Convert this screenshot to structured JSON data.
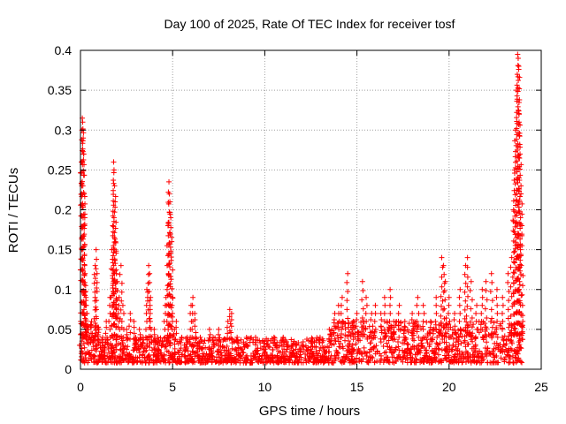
{
  "chart_data": {
    "type": "scatter",
    "title": "Day 100 of 2025, Rate Of TEC Index for receiver tosf",
    "xlabel": "GPS time / hours",
    "ylabel": "ROTI / TECUs",
    "xlim": [
      0,
      25
    ],
    "ylim": [
      0,
      0.4
    ],
    "xticks": [
      0,
      5,
      10,
      15,
      20,
      25
    ],
    "xtick_labels": [
      "0",
      "5",
      "10",
      "15",
      "20",
      "25"
    ],
    "yticks": [
      0,
      0.05,
      0.1,
      0.15,
      0.2,
      0.25,
      0.3,
      0.35,
      0.4
    ],
    "ytick_labels": [
      "0",
      "0.05",
      "0.1",
      "0.15",
      "0.2",
      "0.25",
      "0.3",
      "0.35",
      "0.4"
    ],
    "grid": true,
    "marker": "+",
    "color": "#ff0000",
    "series": [
      {
        "name": "ROTI",
        "points": [
          [
            0.0,
            0.03
          ],
          [
            0.05,
            0.26
          ],
          [
            0.08,
            0.3
          ],
          [
            0.1,
            0.315
          ],
          [
            0.12,
            0.31
          ],
          [
            0.15,
            0.29
          ],
          [
            0.18,
            0.27
          ],
          [
            0.2,
            0.22
          ],
          [
            0.22,
            0.18
          ],
          [
            0.25,
            0.12
          ],
          [
            0.3,
            0.09
          ],
          [
            0.35,
            0.07
          ],
          [
            0.4,
            0.05
          ],
          [
            0.5,
            0.04
          ],
          [
            0.6,
            0.06
          ],
          [
            0.7,
            0.04
          ],
          [
            0.8,
            0.13
          ],
          [
            0.85,
            0.15
          ],
          [
            0.9,
            0.12
          ],
          [
            1.0,
            0.05
          ],
          [
            1.2,
            0.04
          ],
          [
            1.4,
            0.06
          ],
          [
            1.6,
            0.09
          ],
          [
            1.7,
            0.15
          ],
          [
            1.75,
            0.18
          ],
          [
            1.8,
            0.26
          ],
          [
            1.82,
            0.25
          ],
          [
            1.85,
            0.23
          ],
          [
            1.88,
            0.21
          ],
          [
            1.9,
            0.16
          ],
          [
            1.95,
            0.12
          ],
          [
            2.0,
            0.11
          ],
          [
            2.1,
            0.09
          ],
          [
            2.2,
            0.13
          ],
          [
            2.3,
            0.08
          ],
          [
            2.5,
            0.05
          ],
          [
            2.7,
            0.07
          ],
          [
            2.9,
            0.06
          ],
          [
            3.0,
            0.04
          ],
          [
            3.2,
            0.05
          ],
          [
            3.4,
            0.04
          ],
          [
            3.6,
            0.1
          ],
          [
            3.7,
            0.13
          ],
          [
            3.75,
            0.12
          ],
          [
            3.8,
            0.09
          ],
          [
            4.0,
            0.05
          ],
          [
            4.2,
            0.04
          ],
          [
            4.4,
            0.03
          ],
          [
            4.6,
            0.08
          ],
          [
            4.7,
            0.1
          ],
          [
            4.75,
            0.18
          ],
          [
            4.8,
            0.235
          ],
          [
            4.82,
            0.22
          ],
          [
            4.85,
            0.21
          ],
          [
            4.9,
            0.19
          ],
          [
            4.95,
            0.16
          ],
          [
            5.0,
            0.09
          ],
          [
            5.1,
            0.05
          ],
          [
            5.2,
            0.06
          ],
          [
            5.5,
            0.04
          ],
          [
            5.8,
            0.04
          ],
          [
            6.0,
            0.08
          ],
          [
            6.1,
            0.09
          ],
          [
            6.2,
            0.07
          ],
          [
            6.5,
            0.04
          ],
          [
            7.0,
            0.05
          ],
          [
            7.2,
            0.04
          ],
          [
            7.5,
            0.05
          ],
          [
            8.0,
            0.06
          ],
          [
            8.1,
            0.075
          ],
          [
            8.2,
            0.07
          ],
          [
            8.5,
            0.04
          ],
          [
            9.0,
            0.03
          ],
          [
            9.5,
            0.04
          ],
          [
            10.0,
            0.035
          ],
          [
            10.5,
            0.04
          ],
          [
            11.0,
            0.04
          ],
          [
            11.5,
            0.03
          ],
          [
            12.0,
            0.03
          ],
          [
            12.5,
            0.035
          ],
          [
            13.0,
            0.04
          ],
          [
            13.5,
            0.05
          ],
          [
            13.8,
            0.07
          ],
          [
            14.0,
            0.08
          ],
          [
            14.2,
            0.09
          ],
          [
            14.5,
            0.12
          ],
          [
            14.8,
            0.06
          ],
          [
            15.0,
            0.07
          ],
          [
            15.3,
            0.11
          ],
          [
            15.5,
            0.09
          ],
          [
            15.8,
            0.07
          ],
          [
            16.0,
            0.08
          ],
          [
            16.3,
            0.07
          ],
          [
            16.5,
            0.09
          ],
          [
            16.8,
            0.1
          ],
          [
            17.0,
            0.06
          ],
          [
            17.3,
            0.08
          ],
          [
            17.6,
            0.06
          ],
          [
            18.0,
            0.07
          ],
          [
            18.3,
            0.09
          ],
          [
            18.6,
            0.08
          ],
          [
            19.0,
            0.06
          ],
          [
            19.3,
            0.09
          ],
          [
            19.6,
            0.14
          ],
          [
            19.7,
            0.13
          ],
          [
            19.8,
            0.11
          ],
          [
            20.0,
            0.09
          ],
          [
            20.3,
            0.07
          ],
          [
            20.6,
            0.1
          ],
          [
            20.9,
            0.13
          ],
          [
            21.0,
            0.14
          ],
          [
            21.2,
            0.11
          ],
          [
            21.5,
            0.08
          ],
          [
            21.8,
            0.1
          ],
          [
            22.0,
            0.11
          ],
          [
            22.3,
            0.12
          ],
          [
            22.6,
            0.1
          ],
          [
            22.9,
            0.09
          ],
          [
            23.2,
            0.12
          ],
          [
            23.4,
            0.14
          ],
          [
            23.5,
            0.2
          ],
          [
            23.55,
            0.25
          ],
          [
            23.6,
            0.3
          ],
          [
            23.65,
            0.35
          ],
          [
            23.7,
            0.37
          ],
          [
            23.72,
            0.395
          ],
          [
            23.75,
            0.39
          ],
          [
            23.78,
            0.38
          ],
          [
            23.8,
            0.32
          ],
          [
            23.85,
            0.27
          ],
          [
            23.9,
            0.22
          ],
          [
            23.95,
            0.18
          ],
          [
            24.0,
            0.06
          ]
        ],
        "baseline_band": [
          0.008,
          0.04
        ]
      }
    ]
  }
}
